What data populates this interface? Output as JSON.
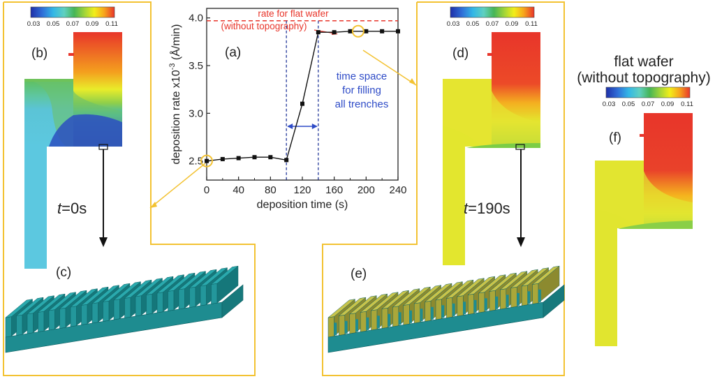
{
  "colorbar": {
    "ticks": [
      "0.03",
      "0.05",
      "0.07",
      "0.09",
      "0.11"
    ],
    "colors": [
      "#1f2fa8",
      "#2f6fd8",
      "#33b7e6",
      "#5fd0c0",
      "#46b556",
      "#9fd43a",
      "#f2ee1a",
      "#f7a21c",
      "#e8352a"
    ]
  },
  "panels": {
    "b": "(b)",
    "c": "(c)",
    "d": "(d)",
    "e": "(e)",
    "f": "(f)",
    "a": "(a)"
  },
  "time_labels": {
    "t0": {
      "var": "t",
      "value": "=0s"
    },
    "t190": {
      "var": "t",
      "value": "=190s"
    }
  },
  "flat_wafer": {
    "line1": "flat wafer",
    "line2": "(without topography)"
  },
  "colors": {
    "frame": "#f3c232",
    "flat_rate_line": "#e8352a",
    "dashed_markers": "#23389a",
    "annotation_blue": "#2e4bc7",
    "trench_teal": "#1e8c90",
    "trench_yellow": "#b8b53a"
  },
  "chart_data": {
    "type": "line",
    "xlabel": "deposition time (s)",
    "ylabel_prefix": "deposition rate x10",
    "ylabel_exp": "-3",
    "ylabel_suffix": " (Å/min)",
    "xlim": [
      0,
      240
    ],
    "ylim": [
      2.3,
      4.1
    ],
    "x_ticks": [
      0,
      40,
      80,
      120,
      160,
      200,
      240
    ],
    "y_ticks": [
      2.5,
      3.0,
      3.5,
      4.0
    ],
    "y_tick_labels": [
      "2.5",
      "3.0",
      "3.5",
      "4.0"
    ],
    "x": [
      0,
      20,
      40,
      60,
      80,
      100,
      120,
      140,
      160,
      180,
      200,
      220,
      240
    ],
    "y": [
      2.5,
      2.52,
      2.53,
      2.54,
      2.54,
      2.51,
      3.1,
      3.85,
      3.85,
      3.86,
      3.86,
      3.86,
      3.86
    ],
    "flat_wafer_rate": 3.97,
    "flat_wafer_label_line1": "rate for flat wafer",
    "flat_wafer_label_line2": "(without topography)",
    "vertical_markers": [
      100,
      140
    ],
    "annotation_lines": [
      "time space",
      "for filling",
      "all trenches"
    ],
    "circled_points": [
      0,
      190
    ]
  }
}
